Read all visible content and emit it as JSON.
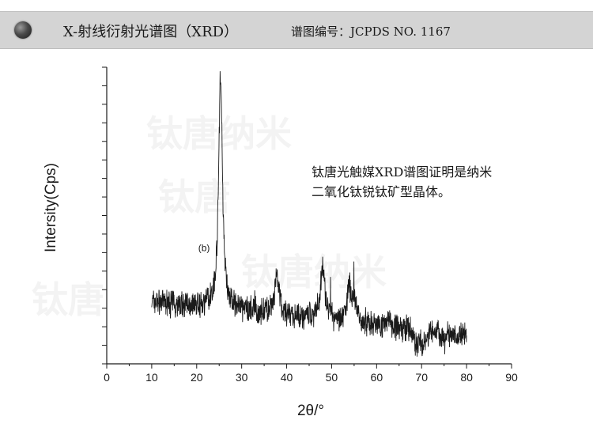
{
  "header": {
    "title": "X-射线衍射光谱图（XRD）",
    "reference": "谱图编号：JCPDS NO. 1167",
    "bullet_color": "#3a3a3a",
    "background_color": "#d4d4d4"
  },
  "annotation": {
    "line1": "钛唐光触媒XRD谱图证明是纳米",
    "line2": "二氧化钛锐钛矿型晶体。"
  },
  "watermark_texts": [
    "钛唐纳米",
    "钛唐",
    "钛唐纳米",
    "钛唐"
  ],
  "chart_data": {
    "type": "line",
    "title": "",
    "xlabel": "2θ/°",
    "ylabel": "Intersity(Cps)",
    "xlim": [
      0,
      90
    ],
    "ylim": [
      0,
      100
    ],
    "x_ticks": [
      0,
      10,
      20,
      30,
      40,
      50,
      60,
      70,
      80,
      90
    ],
    "y_tick_count": 17,
    "grid": false,
    "line_color": "#1a1a1a",
    "series": [
      {
        "label": "(b)",
        "label_x": 20,
        "label_y": 38,
        "x_range": [
          10,
          80
        ],
        "baseline_start": 21,
        "baseline_end": 10,
        "noise_amplitude": 3.5,
        "peaks": [
          {
            "x": 25.3,
            "y": 98,
            "width": 0.5
          },
          {
            "x": 37.8,
            "y": 29,
            "width": 0.55
          },
          {
            "x": 48.0,
            "y": 32,
            "width": 0.6
          },
          {
            "x": 53.9,
            "y": 25,
            "width": 0.55
          },
          {
            "x": 55.1,
            "y": 21,
            "width": 0.55
          },
          {
            "x": 62.7,
            "y": 15,
            "width": 0.6
          },
          {
            "x": 68.8,
            "y": 7,
            "width": 0.6
          },
          {
            "x": 70.3,
            "y": 6,
            "width": 0.6
          },
          {
            "x": 75.1,
            "y": 8,
            "width": 0.6
          }
        ]
      }
    ]
  }
}
